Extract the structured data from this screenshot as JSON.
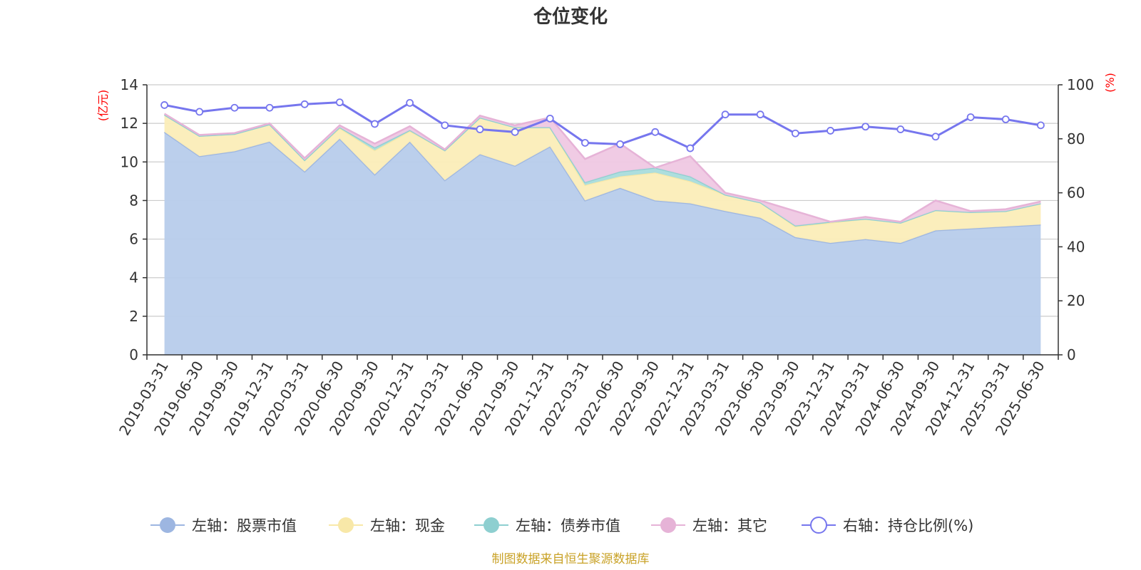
{
  "chart_data": {
    "type": "area",
    "title": "仓位变化",
    "source_note": "制图数据来自恒生聚源数据库",
    "left_axis": {
      "unit": "(亿元)",
      "ylim": [
        0,
        14
      ],
      "ticks": [
        0,
        2,
        4,
        6,
        8,
        10,
        12,
        14
      ]
    },
    "right_axis": {
      "unit": "(%)",
      "ylim": [
        0,
        100
      ],
      "ticks": [
        0,
        20,
        40,
        60,
        80,
        100
      ]
    },
    "grid": true,
    "legend_position": "bottom",
    "x": [
      "2019-03-31",
      "2019-06-30",
      "2019-09-30",
      "2019-12-31",
      "2020-03-31",
      "2020-06-30",
      "2020-09-30",
      "2020-12-31",
      "2021-03-31",
      "2021-06-30",
      "2021-09-30",
      "2021-12-31",
      "2022-03-31",
      "2022-06-30",
      "2022-09-30",
      "2022-12-31",
      "2023-03-31",
      "2023-06-30",
      "2023-09-30",
      "2023-12-31",
      "2024-03-31",
      "2024-06-30",
      "2024-09-30",
      "2024-12-31",
      "2025-03-31",
      "2025-06-30"
    ],
    "series": [
      {
        "name": "左轴：股票市值",
        "axis": "left",
        "kind": "area",
        "color": "#9db6e1",
        "fill": "#b7cceb",
        "values": [
          11.55,
          10.3,
          10.55,
          11.05,
          9.5,
          11.2,
          9.35,
          11.05,
          9.05,
          10.4,
          9.8,
          10.8,
          8.0,
          8.65,
          8.0,
          7.85,
          7.45,
          7.1,
          6.1,
          5.8,
          6.0,
          5.8,
          6.45,
          6.55,
          6.65,
          6.75
        ]
      },
      {
        "name": "左轴：现金",
        "axis": "left",
        "kind": "area",
        "color": "#f8e8a8",
        "fill": "#fbedb8",
        "values": [
          0.9,
          1.05,
          0.9,
          0.9,
          0.6,
          0.55,
          1.25,
          0.55,
          1.55,
          1.9,
          2.0,
          1.0,
          0.8,
          0.6,
          1.45,
          1.15,
          0.85,
          0.8,
          0.55,
          1.05,
          1.05,
          1.05,
          1.05,
          0.85,
          0.8,
          1.1
        ]
      },
      {
        "name": "左轴：债券市值",
        "axis": "left",
        "kind": "area",
        "color": "#8ecfd0",
        "fill": "#a9dcdc",
        "values": [
          0.0,
          0.0,
          0.0,
          0.0,
          0.0,
          0.05,
          0.15,
          0.05,
          0.0,
          0.0,
          0.0,
          0.0,
          0.15,
          0.25,
          0.25,
          0.25,
          0.0,
          0.0,
          0.05,
          0.05,
          0.0,
          0.0,
          0.0,
          0.0,
          0.0,
          0.0
        ]
      },
      {
        "name": "左轴：其它",
        "axis": "left",
        "kind": "area",
        "color": "#e6b3d7",
        "fill": "#efc8e3",
        "values": [
          0.05,
          0.05,
          0.05,
          0.05,
          0.1,
          0.1,
          0.2,
          0.2,
          0.05,
          0.1,
          0.1,
          0.5,
          1.2,
          1.45,
          0.0,
          1.05,
          0.1,
          0.1,
          0.75,
          0.0,
          0.1,
          0.05,
          0.5,
          0.05,
          0.1,
          0.1
        ]
      },
      {
        "name": "右轴：持仓比例(%)",
        "axis": "right",
        "kind": "line",
        "color": "#7676ee",
        "values": [
          92.5,
          90.0,
          91.5,
          91.5,
          92.8,
          93.5,
          85.5,
          93.3,
          85.0,
          83.5,
          82.5,
          87.5,
          78.5,
          78.0,
          82.5,
          76.5,
          89.0,
          89.0,
          82.0,
          83.0,
          84.5,
          83.5,
          80.8,
          88.0,
          87.2,
          85.0
        ]
      }
    ]
  }
}
